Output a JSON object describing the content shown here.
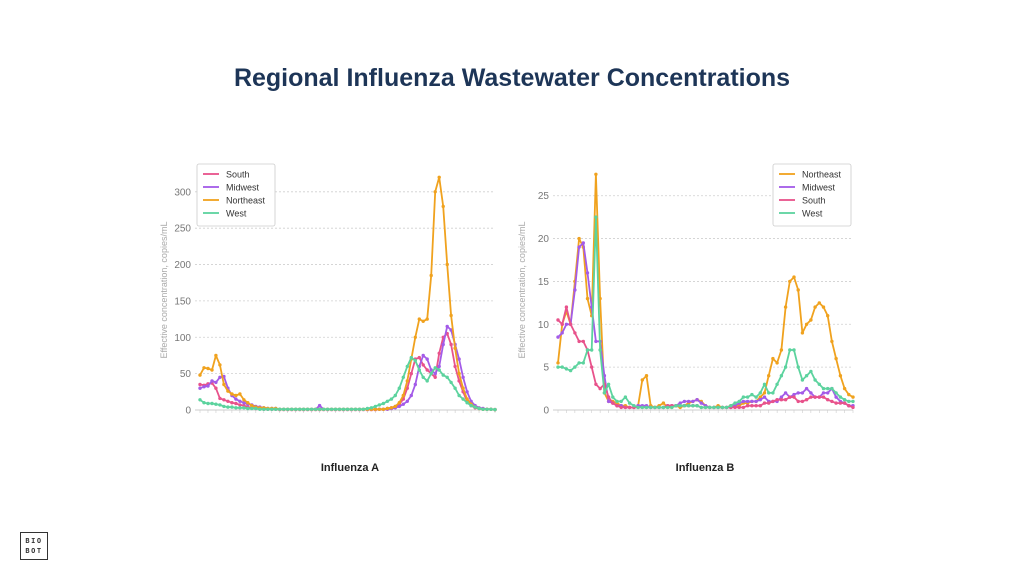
{
  "page": {
    "title": "Regional Influenza Wastewater Concentrations",
    "logo_line1": "BIO",
    "logo_line2": "BOT"
  },
  "chart_data": [
    {
      "type": "line",
      "title": "Influenza A",
      "ylabel": "Effective concentration, copies/mL",
      "ylim": [
        0,
        330
      ],
      "yticks": [
        0,
        50,
        100,
        150,
        200,
        250,
        300
      ],
      "grid": true,
      "legend": "top-left",
      "series": [
        {
          "name": "South",
          "color": "#e8528b",
          "values": [
            35,
            34,
            36,
            37,
            30,
            16,
            14,
            12,
            10,
            9,
            7,
            6,
            4,
            3,
            2,
            2,
            1,
            1,
            1,
            1,
            0.5,
            0.5,
            0.5,
            0.5,
            0.5,
            0.5,
            0.5,
            0.5,
            0.5,
            0.5,
            0.5,
            0.5,
            0.5,
            0.5,
            0.5,
            0.5,
            0.5,
            0.5,
            0.5,
            0.5,
            0.5,
            0.5,
            0.5,
            0.5,
            0.5,
            1,
            1,
            2,
            3,
            5,
            8,
            15,
            30,
            50,
            70,
            72,
            62,
            55,
            50,
            45,
            78,
            100,
            105,
            90,
            60,
            40,
            25,
            12,
            6,
            3,
            2,
            1,
            1,
            1,
            0.5
          ]
        },
        {
          "name": "Midwest",
          "color": "#a35be8",
          "values": [
            30,
            32,
            33,
            40,
            38,
            45,
            46,
            30,
            20,
            15,
            12,
            10,
            8,
            7,
            5,
            4,
            3,
            2,
            2,
            2,
            1,
            1,
            1,
            1,
            1,
            1,
            1,
            1,
            1,
            1,
            6,
            1,
            1,
            1,
            1,
            1,
            1,
            1,
            1,
            1,
            1,
            1,
            1,
            1,
            1,
            1,
            1,
            1,
            2,
            3,
            5,
            8,
            12,
            20,
            35,
            60,
            75,
            70,
            55,
            50,
            60,
            90,
            115,
            110,
            90,
            70,
            45,
            25,
            12,
            6,
            3,
            2,
            1,
            1,
            0.5
          ]
        },
        {
          "name": "Northeast",
          "color": "#f0a21e",
          "values": [
            48,
            58,
            57,
            55,
            75,
            62,
            35,
            26,
            22,
            20,
            22,
            14,
            10,
            6,
            4,
            3,
            3,
            2,
            2,
            2,
            1,
            1,
            1,
            1,
            1,
            1,
            1,
            1,
            1,
            1,
            1,
            1,
            1,
            1,
            1,
            1,
            1,
            1,
            1,
            1,
            1,
            1,
            1,
            1,
            1,
            1,
            1,
            2,
            3,
            5,
            10,
            20,
            40,
            70,
            100,
            125,
            122,
            125,
            185,
            300,
            320,
            280,
            200,
            130,
            85,
            50,
            30,
            15,
            8,
            4,
            2,
            1,
            1,
            1,
            0.5
          ]
        },
        {
          "name": "West",
          "color": "#5cd39e",
          "values": [
            14,
            10,
            9,
            9,
            8,
            7,
            5,
            4,
            4,
            3,
            3,
            3,
            2,
            2,
            2,
            1,
            1,
            1,
            1,
            1,
            1,
            1,
            1,
            1,
            1,
            1,
            1,
            1,
            1,
            1,
            1,
            1,
            1,
            1,
            1,
            1,
            1,
            1,
            1,
            1,
            1,
            1,
            2,
            3,
            5,
            7,
            9,
            12,
            15,
            20,
            30,
            45,
            60,
            72,
            68,
            55,
            45,
            40,
            50,
            58,
            55,
            48,
            45,
            38,
            30,
            20,
            15,
            10,
            6,
            4,
            2,
            1,
            1,
            1,
            0.5
          ]
        }
      ]
    },
    {
      "type": "line",
      "title": "Influenza B",
      "ylabel": "Effective concentration, copies/mL",
      "ylim": [
        0,
        28
      ],
      "yticks": [
        0,
        5,
        10,
        15,
        20,
        25
      ],
      "grid": true,
      "legend": "top-right",
      "series": [
        {
          "name": "Northeast",
          "color": "#f0a21e",
          "values": [
            5.5,
            10,
            11.5,
            10,
            15,
            20,
            19,
            13,
            11,
            27.5,
            13,
            2,
            1,
            1,
            0.8,
            0.5,
            0.5,
            0.3,
            0.3,
            0.5,
            3.5,
            4,
            0.5,
            0.3,
            0.5,
            0.8,
            0.3,
            0.3,
            0.5,
            0.3,
            0.5,
            0.8,
            1,
            1.2,
            1,
            0.5,
            0.3,
            0.3,
            0.5,
            0.3,
            0.3,
            0.5,
            0.5,
            0.5,
            0.8,
            0.8,
            1,
            1,
            1.5,
            2,
            4,
            6,
            5.5,
            7,
            12,
            15,
            15.5,
            14,
            9,
            10,
            10.5,
            12,
            12.5,
            12,
            11,
            8,
            6,
            4,
            2.5,
            1.8,
            1.5
          ]
        },
        {
          "name": "Midwest",
          "color": "#a35be8",
          "values": [
            8.5,
            9,
            10,
            10,
            14,
            19,
            19.5,
            16,
            12,
            8,
            8,
            4,
            1,
            0.8,
            0.5,
            0.5,
            0.3,
            0.3,
            0.3,
            0.5,
            0.5,
            0.5,
            0.3,
            0.3,
            0.3,
            0.3,
            0.5,
            0.5,
            0.5,
            0.8,
            1,
            1,
            1,
            1.2,
            0.8,
            0.5,
            0.3,
            0.3,
            0.3,
            0.3,
            0.3,
            0.3,
            0.5,
            0.8,
            1,
            1,
            1,
            1,
            1.2,
            1.5,
            1,
            1,
            1,
            1.5,
            2,
            1.5,
            1.8,
            2,
            2,
            2.5,
            2,
            1.5,
            1.5,
            2,
            2,
            2.5,
            1.5,
            1,
            0.8,
            0.5,
            0.5
          ]
        },
        {
          "name": "South",
          "color": "#e8528b",
          "values": [
            10.5,
            10,
            12,
            10,
            9,
            8,
            8,
            7,
            5,
            3,
            2.5,
            3,
            1.5,
            0.8,
            0.5,
            0.3,
            0.3,
            0.3,
            0.3,
            0.3,
            0.3,
            0.3,
            0.3,
            0.3,
            0.3,
            0.3,
            0.5,
            0.5,
            0.5,
            0.5,
            0.5,
            0.5,
            0.5,
            0.5,
            0.3,
            0.3,
            0.3,
            0.3,
            0.3,
            0.3,
            0.3,
            0.3,
            0.3,
            0.3,
            0.3,
            0.5,
            0.5,
            0.5,
            0.5,
            0.8,
            0.8,
            1,
            1.2,
            1.2,
            1.2,
            1.5,
            1.5,
            1,
            1,
            1.2,
            1.5,
            1.5,
            1.5,
            1.5,
            1.2,
            1,
            0.8,
            0.8,
            0.8,
            0.5,
            0.3
          ]
        },
        {
          "name": "West",
          "color": "#5cd39e",
          "values": [
            5,
            5,
            4.8,
            4.6,
            5,
            5.5,
            5.5,
            7,
            7,
            22.5,
            7,
            2,
            3,
            1.5,
            1,
            1,
            1.5,
            0.8,
            0.5,
            0.3,
            0.3,
            0.3,
            0.3,
            0.3,
            0.3,
            0.3,
            0.3,
            0.3,
            0.5,
            0.5,
            0.5,
            0.5,
            0.5,
            0.5,
            0.3,
            0.3,
            0.3,
            0.3,
            0.3,
            0.3,
            0.3,
            0.5,
            0.8,
            1,
            1.5,
            1.5,
            1.8,
            1.5,
            2,
            3,
            2,
            2,
            3,
            4,
            5,
            7,
            7,
            5,
            3.5,
            4,
            4.5,
            3.5,
            3,
            2.5,
            2.5,
            2.5,
            2,
            1.5,
            1.2,
            1,
            1
          ]
        }
      ]
    }
  ]
}
